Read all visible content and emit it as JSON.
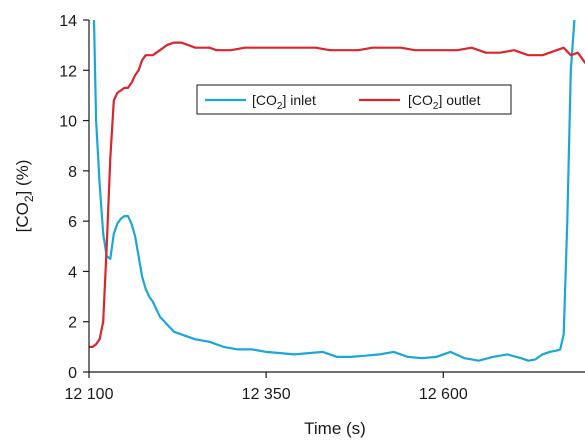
{
  "chart_data": {
    "type": "line",
    "xlabel": "Time (s)",
    "ylabel_parts": [
      "[CO",
      "2",
      "] (%)"
    ],
    "xlim": [
      12100,
      12800
    ],
    "ylim": [
      0,
      14
    ],
    "x_ticks": [
      12100,
      12350,
      12600
    ],
    "x_tick_labels": [
      "12 100",
      "12 350",
      "12 600"
    ],
    "y_ticks": [
      0,
      2,
      4,
      6,
      8,
      10,
      12,
      14
    ],
    "y_tick_labels": [
      "0",
      "2",
      "4",
      "6",
      "8",
      "10",
      "12",
      "14"
    ],
    "grid": false,
    "legend_position": "top-right",
    "series": [
      {
        "name_parts": [
          "[CO",
          "2",
          "] inlet"
        ],
        "color": "#1aa7d8",
        "x": [
          12107,
          12110,
          12115,
          12120,
          12125,
          12130,
          12135,
          12140,
          12145,
          12150,
          12155,
          12160,
          12165,
          12170,
          12175,
          12180,
          12185,
          12190,
          12195,
          12200,
          12210,
          12220,
          12230,
          12240,
          12250,
          12270,
          12290,
          12310,
          12330,
          12350,
          12370,
          12390,
          12410,
          12430,
          12450,
          12470,
          12490,
          12510,
          12530,
          12550,
          12570,
          12590,
          12610,
          12630,
          12650,
          12670,
          12690,
          12710,
          12720,
          12730,
          12740,
          12750,
          12760,
          12765,
          12770,
          12775,
          12780,
          12785
        ],
        "values": [
          14,
          10,
          7.5,
          5.5,
          4.6,
          4.5,
          5.5,
          5.9,
          6.1,
          6.2,
          6.2,
          5.9,
          5.4,
          4.6,
          3.8,
          3.3,
          3.0,
          2.8,
          2.5,
          2.2,
          1.9,
          1.6,
          1.5,
          1.4,
          1.3,
          1.2,
          1.0,
          0.9,
          0.9,
          0.8,
          0.75,
          0.7,
          0.75,
          0.8,
          0.6,
          0.6,
          0.65,
          0.7,
          0.8,
          0.6,
          0.55,
          0.6,
          0.8,
          0.55,
          0.45,
          0.6,
          0.7,
          0.55,
          0.45,
          0.5,
          0.7,
          0.8,
          0.85,
          0.9,
          1.5,
          6,
          12,
          14
        ]
      },
      {
        "name_parts": [
          "[CO",
          "2",
          "] outlet"
        ],
        "color": "#d8262c",
        "x": [
          12100,
          12105,
          12110,
          12115,
          12120,
          12125,
          12130,
          12135,
          12140,
          12145,
          12150,
          12155,
          12160,
          12165,
          12170,
          12175,
          12180,
          12185,
          12190,
          12200,
          12210,
          12220,
          12230,
          12240,
          12250,
          12260,
          12270,
          12280,
          12290,
          12300,
          12320,
          12340,
          12360,
          12380,
          12400,
          12420,
          12440,
          12460,
          12480,
          12500,
          12520,
          12540,
          12560,
          12580,
          12600,
          12620,
          12640,
          12660,
          12680,
          12700,
          12720,
          12740,
          12760,
          12770,
          12780,
          12790,
          12800
        ],
        "values": [
          1.0,
          1.0,
          1.1,
          1.3,
          2.0,
          5.0,
          8.5,
          10.8,
          11.1,
          11.2,
          11.3,
          11.3,
          11.5,
          11.8,
          12.0,
          12.4,
          12.6,
          12.6,
          12.6,
          12.8,
          13.0,
          13.1,
          13.1,
          13.0,
          12.9,
          12.9,
          12.9,
          12.8,
          12.8,
          12.8,
          12.9,
          12.9,
          12.9,
          12.9,
          12.9,
          12.9,
          12.8,
          12.8,
          12.8,
          12.9,
          12.9,
          12.9,
          12.8,
          12.8,
          12.8,
          12.8,
          12.9,
          12.7,
          12.7,
          12.8,
          12.6,
          12.6,
          12.8,
          12.9,
          12.6,
          12.7,
          12.3
        ]
      }
    ]
  }
}
